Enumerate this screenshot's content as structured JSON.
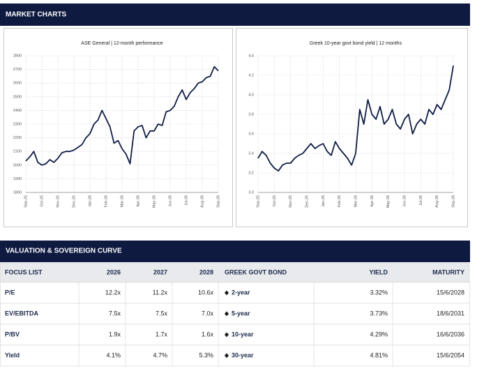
{
  "market_title": "MARKET CHARTS",
  "valuation_title": "VALUATION & SOVEREIGN CURVE",
  "chart_data": [
    {
      "type": "line",
      "title": "ASE General  | 12-month performance",
      "categories": [
        "Sep-25",
        null,
        null,
        null,
        "Oct-25",
        null,
        null,
        null,
        "Nov-25",
        null,
        null,
        null,
        "Dec-25",
        null,
        null,
        null,
        "Jan-26",
        null,
        null,
        null,
        "Feb-26",
        null,
        null,
        null,
        "Mar-26",
        null,
        null,
        null,
        "Apr-26",
        null,
        null,
        null,
        "May-26",
        null,
        null,
        null,
        "Jun-26",
        null,
        null,
        null,
        "Jul-26",
        null,
        null,
        null,
        "Aug-26",
        null,
        null,
        null,
        "Sep-26"
      ],
      "values": [
        2030,
        2060,
        2100,
        2020,
        2000,
        2010,
        2040,
        2020,
        2050,
        2090,
        2100,
        2100,
        2110,
        2130,
        2150,
        2200,
        2230,
        2300,
        2330,
        2400,
        2340,
        2280,
        2160,
        2180,
        2120,
        2080,
        2010,
        2250,
        2280,
        2290,
        2200,
        2250,
        2250,
        2300,
        2290,
        2390,
        2400,
        2430,
        2500,
        2550,
        2480,
        2530,
        2560,
        2600,
        2610,
        2640,
        2650,
        2720,
        2690
      ],
      "color": "#0f1c44",
      "ylim": [
        1800,
        2800
      ],
      "yticks": [
        1800,
        1900,
        2000,
        2100,
        2200,
        2300,
        2400,
        2500,
        2600,
        2700,
        2800
      ],
      "grid": true
    },
    {
      "type": "line",
      "title": "Greek 10-year govt bond yield  | 12 months",
      "categories": [
        "Sep-25",
        null,
        null,
        null,
        "Oct-25",
        null,
        null,
        null,
        "Nov-25",
        null,
        null,
        null,
        "Dec-25",
        null,
        null,
        null,
        "Jan-26",
        null,
        null,
        null,
        "Feb-26",
        null,
        null,
        null,
        "Mar-26",
        null,
        null,
        null,
        "Apr-26",
        null,
        null,
        null,
        "May-26",
        null,
        null,
        null,
        "Jun-26",
        null,
        null,
        null,
        "Jul-26",
        null,
        null,
        null,
        "Aug-26",
        null,
        null,
        null,
        "Sep-26"
      ],
      "values": [
        3.35,
        3.42,
        3.38,
        3.3,
        3.25,
        3.22,
        3.28,
        3.3,
        3.3,
        3.35,
        3.38,
        3.4,
        3.45,
        3.5,
        3.45,
        3.48,
        3.5,
        3.42,
        3.38,
        3.52,
        3.45,
        3.4,
        3.35,
        3.28,
        3.4,
        3.85,
        3.7,
        3.95,
        3.8,
        3.75,
        3.88,
        3.7,
        3.75,
        3.85,
        3.7,
        3.65,
        3.75,
        3.8,
        3.6,
        3.7,
        3.75,
        3.7,
        3.85,
        3.8,
        3.9,
        3.85,
        3.95,
        4.05,
        4.3
      ],
      "color": "#0f1c44",
      "ylim": [
        3.0,
        4.4
      ],
      "yticks": [
        {
          "value": 3.0,
          "label": "3.0"
        },
        3.2,
        3.4,
        3.6,
        3.8,
        {
          "value": 4.0,
          "label": "4.0"
        },
        4.2,
        4.4
      ],
      "grid": true
    }
  ],
  "table": {
    "header": [
      "FOCUS LIST",
      "2026",
      "2027",
      "2028",
      "GREEK GOVT BOND",
      "YIELD",
      "MATURITY"
    ],
    "rows": [
      [
        "P/E",
        "12.2x",
        "11.2x",
        "10.6x",
        "2-year",
        "3.32%",
        "15/6/2028"
      ],
      [
        "EV/EBITDA",
        "7.5x",
        "7.5x",
        "7.0x",
        "5-year",
        "3.73%",
        "18/6/2031"
      ],
      [
        "P/BV",
        "1.9x",
        "1.7x",
        "1.6x",
        "10-year",
        "4.29%",
        "16/6/2036"
      ],
      [
        "Yield",
        "4.1%",
        "4.7%",
        "5.3%",
        "30-year",
        "4.81%",
        "15/6/2054"
      ]
    ]
  }
}
